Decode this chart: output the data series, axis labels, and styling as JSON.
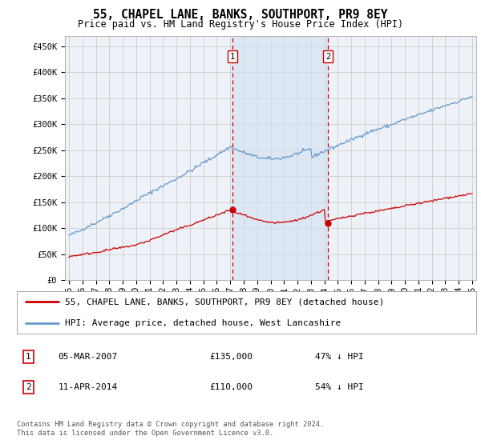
{
  "title": "55, CHAPEL LANE, BANKS, SOUTHPORT, PR9 8EY",
  "subtitle": "Price paid vs. HM Land Registry's House Price Index (HPI)",
  "ylabel_ticks": [
    "£0",
    "£50K",
    "£100K",
    "£150K",
    "£200K",
    "£250K",
    "£300K",
    "£350K",
    "£400K",
    "£450K"
  ],
  "ytick_values": [
    0,
    50000,
    100000,
    150000,
    200000,
    250000,
    300000,
    350000,
    400000,
    450000
  ],
  "ylim": [
    0,
    470000
  ],
  "xlim_start": 1994.7,
  "xlim_end": 2025.3,
  "background_color": "#ffffff",
  "plot_bg_color": "#eef2f8",
  "grid_color": "#cccccc",
  "sale1_date": 2007.17,
  "sale1_price": 135000,
  "sale1_label": "1",
  "sale2_date": 2014.27,
  "sale2_price": 110000,
  "sale2_label": "2",
  "shade_color": "#d0e0f0",
  "shade_alpha": 0.6,
  "red_line_color": "#cc0000",
  "blue_line_color": "#6699cc",
  "marker_color_red": "#cc0000",
  "dashed_line_color": "#cc0000",
  "legend1_label": "55, CHAPEL LANE, BANKS, SOUTHPORT, PR9 8EY (detached house)",
  "legend2_label": "HPI: Average price, detached house, West Lancashire",
  "table_row1": [
    "1",
    "05-MAR-2007",
    "£135,000",
    "47% ↓ HPI"
  ],
  "table_row2": [
    "2",
    "11-APR-2014",
    "£110,000",
    "54% ↓ HPI"
  ],
  "footer": "Contains HM Land Registry data © Crown copyright and database right 2024.\nThis data is licensed under the Open Government Licence v3.0.",
  "title_fontsize": 10.5,
  "subtitle_fontsize": 8.5,
  "tick_fontsize": 7.5,
  "legend_fontsize": 8,
  "table_fontsize": 8
}
